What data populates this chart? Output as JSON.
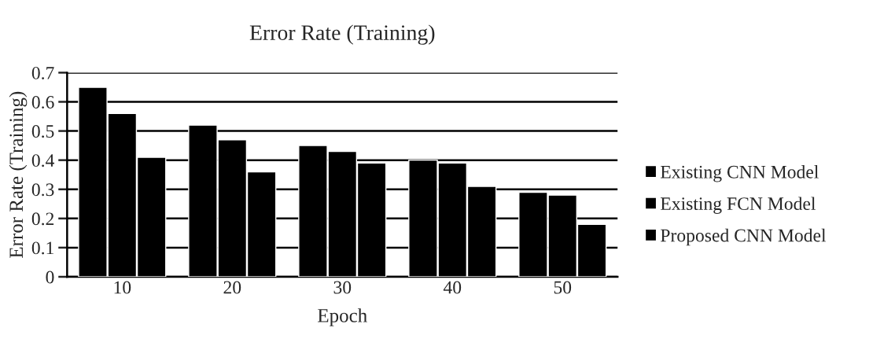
{
  "chart_data": {
    "type": "bar",
    "title": "Error Rate (Training)",
    "xlabel": "Epoch",
    "ylabel": "Error Rate (Training)",
    "categories": [
      "10",
      "20",
      "30",
      "40",
      "50"
    ],
    "series": [
      {
        "name": "Existing CNN Model",
        "color": "#000000",
        "values": [
          0.65,
          0.52,
          0.45,
          0.4,
          0.29
        ]
      },
      {
        "name": "Existing FCN Model",
        "color": "#000000",
        "values": [
          0.56,
          0.47,
          0.43,
          0.39,
          0.28
        ]
      },
      {
        "name": "Proposed CNN Model",
        "color": "#000000",
        "values": [
          0.41,
          0.36,
          0.39,
          0.31,
          0.18
        ]
      }
    ],
    "ylim": [
      0,
      0.7
    ],
    "yticks": [
      {
        "value": 0,
        "label": "0"
      },
      0.1,
      0.2,
      0.3,
      0.4,
      0.5,
      0.6,
      0.7
    ],
    "grid": "y",
    "legend": "right"
  }
}
